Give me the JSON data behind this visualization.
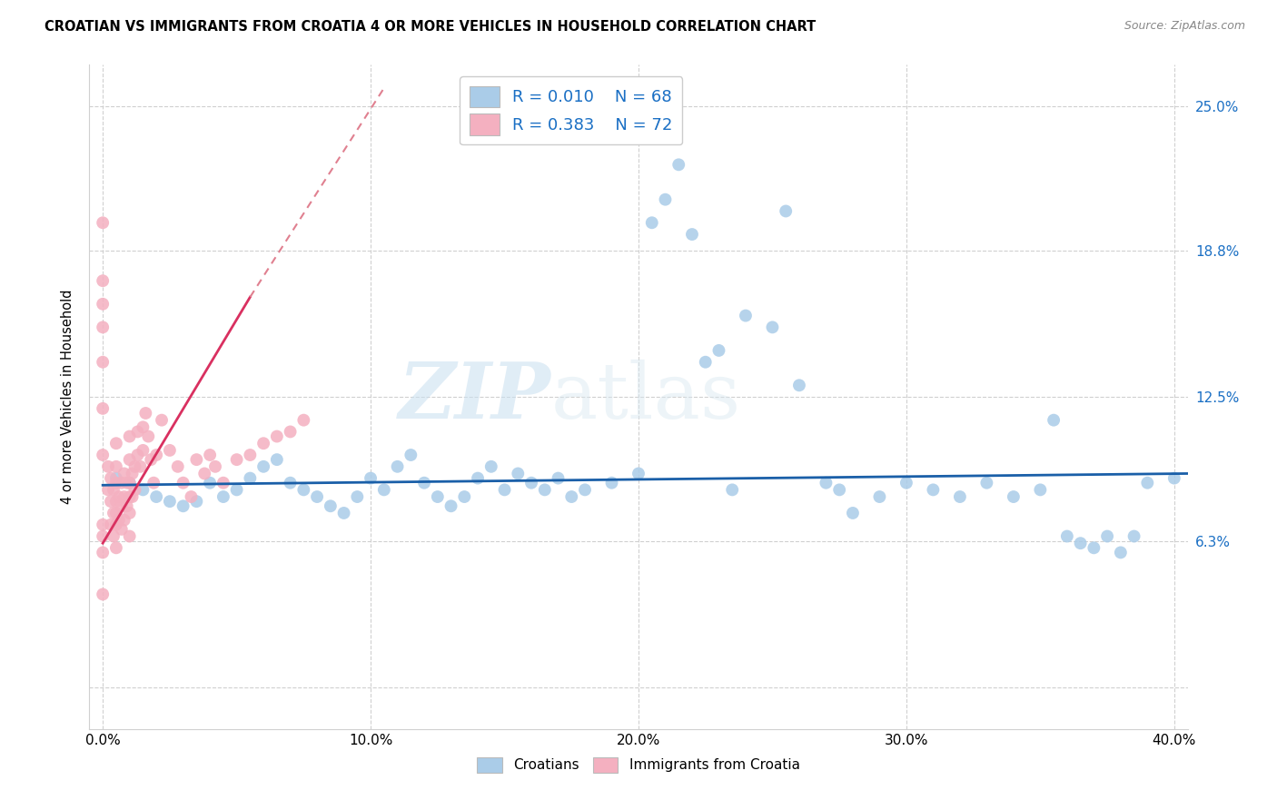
{
  "title": "CROATIAN VS IMMIGRANTS FROM CROATIA 4 OR MORE VEHICLES IN HOUSEHOLD CORRELATION CHART",
  "source": "Source: ZipAtlas.com",
  "ylabel": "4 or more Vehicles in Household",
  "xlim": [
    -0.005,
    0.405
  ],
  "ylim": [
    -0.018,
    0.268
  ],
  "ytick_positions": [
    0.0,
    0.063,
    0.125,
    0.188,
    0.25
  ],
  "ytick_labels": [
    "",
    "6.3%",
    "12.5%",
    "18.8%",
    "25.0%"
  ],
  "xtick_positions": [
    0.0,
    0.1,
    0.2,
    0.3,
    0.4
  ],
  "xtick_labels": [
    "0.0%",
    "10.0%",
    "20.0%",
    "30.0%",
    "40.0%"
  ],
  "legend_r1": "R = 0.010",
  "legend_n1": "N = 68",
  "legend_r2": "R = 0.383",
  "legend_n2": "N = 72",
  "blue_color": "#aacce8",
  "pink_color": "#f4b0c0",
  "blue_line_color": "#1a5fa8",
  "pink_line_color": "#d93060",
  "pink_line_dashed_color": "#e08090",
  "watermark_zip": "ZIP",
  "watermark_atlas": "atlas",
  "blue_scatter_x": [
    0.005,
    0.01,
    0.015,
    0.02,
    0.025,
    0.03,
    0.035,
    0.04,
    0.045,
    0.05,
    0.055,
    0.06,
    0.065,
    0.07,
    0.075,
    0.08,
    0.085,
    0.09,
    0.095,
    0.1,
    0.105,
    0.11,
    0.115,
    0.12,
    0.125,
    0.13,
    0.135,
    0.14,
    0.145,
    0.15,
    0.155,
    0.16,
    0.165,
    0.17,
    0.175,
    0.18,
    0.19,
    0.2,
    0.205,
    0.21,
    0.215,
    0.22,
    0.225,
    0.23,
    0.235,
    0.24,
    0.25,
    0.255,
    0.26,
    0.27,
    0.275,
    0.28,
    0.29,
    0.3,
    0.31,
    0.32,
    0.33,
    0.34,
    0.35,
    0.355,
    0.36,
    0.365,
    0.37,
    0.375,
    0.38,
    0.385,
    0.39,
    0.4
  ],
  "blue_scatter_y": [
    0.09,
    0.088,
    0.085,
    0.082,
    0.08,
    0.078,
    0.08,
    0.088,
    0.082,
    0.085,
    0.09,
    0.095,
    0.098,
    0.088,
    0.085,
    0.082,
    0.078,
    0.075,
    0.082,
    0.09,
    0.085,
    0.095,
    0.1,
    0.088,
    0.082,
    0.078,
    0.082,
    0.09,
    0.095,
    0.085,
    0.092,
    0.088,
    0.085,
    0.09,
    0.082,
    0.085,
    0.088,
    0.092,
    0.2,
    0.21,
    0.225,
    0.195,
    0.14,
    0.145,
    0.085,
    0.16,
    0.155,
    0.205,
    0.13,
    0.088,
    0.085,
    0.075,
    0.082,
    0.088,
    0.085,
    0.082,
    0.088,
    0.082,
    0.085,
    0.115,
    0.065,
    0.062,
    0.06,
    0.065,
    0.058,
    0.065,
    0.088,
    0.09
  ],
  "pink_scatter_x": [
    0.0,
    0.0,
    0.0,
    0.0,
    0.0,
    0.0,
    0.0,
    0.0,
    0.0,
    0.0,
    0.0,
    0.002,
    0.002,
    0.003,
    0.003,
    0.003,
    0.004,
    0.004,
    0.004,
    0.005,
    0.005,
    0.005,
    0.005,
    0.005,
    0.005,
    0.005,
    0.006,
    0.006,
    0.007,
    0.007,
    0.007,
    0.008,
    0.008,
    0.008,
    0.009,
    0.009,
    0.01,
    0.01,
    0.01,
    0.01,
    0.01,
    0.01,
    0.011,
    0.011,
    0.012,
    0.012,
    0.013,
    0.013,
    0.014,
    0.015,
    0.015,
    0.016,
    0.017,
    0.018,
    0.019,
    0.02,
    0.022,
    0.025,
    0.028,
    0.03,
    0.033,
    0.035,
    0.038,
    0.04,
    0.042,
    0.045,
    0.05,
    0.055,
    0.06,
    0.065,
    0.07,
    0.075
  ],
  "pink_scatter_y": [
    0.2,
    0.175,
    0.165,
    0.155,
    0.14,
    0.12,
    0.1,
    0.07,
    0.065,
    0.058,
    0.04,
    0.095,
    0.085,
    0.09,
    0.08,
    0.07,
    0.085,
    0.075,
    0.065,
    0.105,
    0.095,
    0.088,
    0.08,
    0.075,
    0.07,
    0.06,
    0.082,
    0.072,
    0.088,
    0.078,
    0.068,
    0.092,
    0.082,
    0.072,
    0.088,
    0.078,
    0.108,
    0.098,
    0.088,
    0.082,
    0.075,
    0.065,
    0.092,
    0.082,
    0.095,
    0.085,
    0.11,
    0.1,
    0.095,
    0.112,
    0.102,
    0.118,
    0.108,
    0.098,
    0.088,
    0.1,
    0.115,
    0.102,
    0.095,
    0.088,
    0.082,
    0.098,
    0.092,
    0.1,
    0.095,
    0.088,
    0.098,
    0.1,
    0.105,
    0.108,
    0.11,
    0.115
  ]
}
